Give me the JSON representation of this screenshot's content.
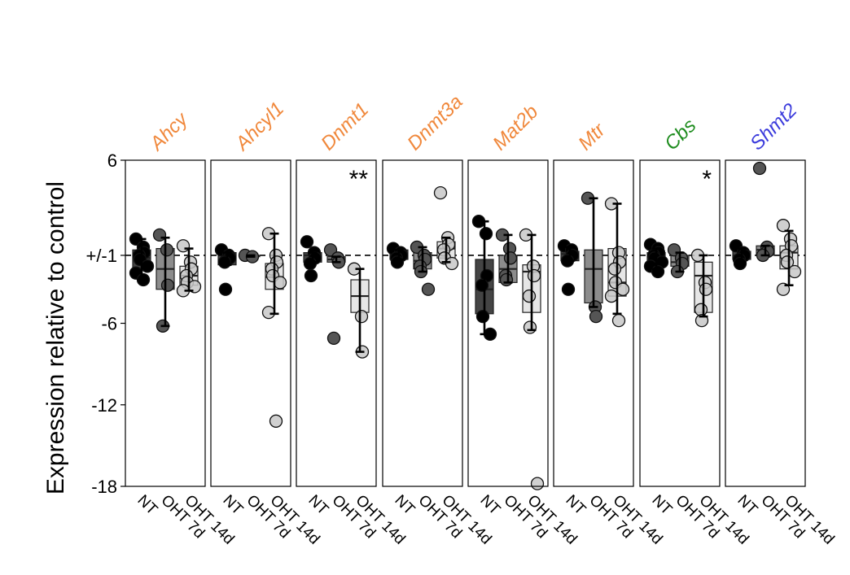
{
  "chart_data": {
    "type": "box",
    "ylabel": "Expression relative to control",
    "ylim": [
      -18,
      6
    ],
    "y_ticks": [
      6,
      -1,
      -6,
      -12,
      -18
    ],
    "y_tick_labels": [
      "6",
      "+/-1",
      "-6",
      "-12",
      "-18"
    ],
    "baseline": -1,
    "categories": [
      "NT",
      "OHT 7d",
      "OHT 14d"
    ],
    "group_colors": [
      "#000000",
      "#555555",
      "#c8c8c8"
    ],
    "box_colors": [
      "#444444",
      "#8c8c8c",
      "#e6e6e6"
    ],
    "panels": [
      {
        "gene": "Ahcy",
        "color": "#f0883c",
        "significance": "",
        "groups": [
          {
            "name": "NT",
            "points": [
              0.2,
              -0.4,
              -0.8,
              -1.0,
              -1.3,
              -1.8,
              -2.3,
              -2.8
            ],
            "q1": -2.0,
            "median": -1.2,
            "q3": -0.6,
            "whisker_low": -2.8,
            "whisker_high": 0.2
          },
          {
            "name": "OHT 7d",
            "points": [
              0.5,
              -0.6,
              -3.2,
              -6.2
            ],
            "q1": -3.5,
            "median": -2.0,
            "q3": -0.5,
            "whisker_low": -6.2,
            "whisker_high": 0.3
          },
          {
            "name": "OHT 14d",
            "points": [
              -0.3,
              -1.5,
              -2.0,
              -2.5,
              -3.0,
              -3.3,
              -3.6
            ],
            "q1": -3.2,
            "median": -2.5,
            "q3": -1.8,
            "whisker_low": -3.6,
            "whisker_high": -0.5
          }
        ]
      },
      {
        "gene": "Ahcyl1",
        "color": "#f0883c",
        "significance": "",
        "groups": [
          {
            "name": "NT",
            "points": [
              -0.6,
              -1.0,
              -1.2,
              -1.5,
              -3.5
            ],
            "q1": -1.7,
            "median": -1.0,
            "q3": -0.8,
            "whisker_low": -1.7,
            "whisker_high": -0.8
          },
          {
            "name": "OHT 7d",
            "points": [
              -1.0,
              -1.1
            ],
            "q1": -1.1,
            "median": -1.05,
            "q3": -1.0,
            "whisker_low": -1.1,
            "whisker_high": -1.0
          },
          {
            "name": "OHT 14d",
            "points": [
              0.6,
              -1.0,
              -1.5,
              -2.0,
              -2.5,
              -3.0,
              -5.2,
              -13.2
            ],
            "q1": -3.5,
            "median": -2.6,
            "q3": -1.6,
            "whisker_low": -5.3,
            "whisker_high": 0.6
          }
        ]
      },
      {
        "gene": "Dnmt1",
        "color": "#f0883c",
        "significance": "**",
        "groups": [
          {
            "name": "NT",
            "points": [
              0.0,
              -0.8,
              -1.2,
              -1.6,
              -2.5
            ],
            "q1": -1.5,
            "median": -1.0,
            "q3": -0.8,
            "whisker_low": -1.5,
            "whisker_high": -0.8
          },
          {
            "name": "OHT 7d",
            "points": [
              -0.6,
              -1.2,
              -1.5,
              -7.1
            ],
            "q1": -1.5,
            "median": -1.3,
            "q3": -1.1,
            "whisker_low": -1.5,
            "whisker_high": -1.1
          },
          {
            "name": "OHT 14d",
            "points": [
              -2.0,
              -5.5,
              -8.1
            ],
            "q1": -5.2,
            "median": -4.0,
            "q3": -2.8,
            "whisker_low": -8.1,
            "whisker_high": -2.0
          }
        ]
      },
      {
        "gene": "Dnmt3a",
        "color": "#f0883c",
        "significance": "",
        "groups": [
          {
            "name": "NT",
            "points": [
              -0.5,
              -0.8,
              -1.0,
              -1.2,
              -1.5
            ],
            "q1": -1.3,
            "median": -1.0,
            "q3": -0.6,
            "whisker_low": -1.3,
            "whisker_high": -0.6
          },
          {
            "name": "OHT 7d",
            "points": [
              -0.4,
              -1.0,
              -1.3,
              -1.8,
              -2.2,
              -3.5
            ],
            "q1": -2.0,
            "median": -1.4,
            "q3": -0.8,
            "whisker_low": -2.2,
            "whisker_high": -0.4
          },
          {
            "name": "OHT 14d",
            "points": [
              3.6,
              0.3,
              -0.2,
              -0.6,
              -1.2,
              -1.6
            ],
            "q1": -1.2,
            "median": -0.5,
            "q3": 0.0,
            "whisker_low": -1.5,
            "whisker_high": 0.3
          }
        ]
      },
      {
        "gene": "Mat2b",
        "color": "#f0883c",
        "significance": "",
        "groups": [
          {
            "name": "NT",
            "points": [
              1.5,
              0.6,
              -2.5,
              -3.2,
              -5.5,
              -6.8
            ],
            "q1": -5.3,
            "median": -3.5,
            "q3": -1.3,
            "whisker_low": -6.8,
            "whisker_high": 1.5
          },
          {
            "name": "OHT 7d",
            "points": [
              0.5,
              -0.5,
              -1.2,
              -2.5,
              -2.8
            ],
            "q1": -3.0,
            "median": -2.0,
            "q3": -1.0,
            "whisker_low": -3.0,
            "whisker_high": 0.5
          },
          {
            "name": "OHT 14d",
            "points": [
              0.5,
              -1.8,
              -2.5,
              -4.0,
              -6.3,
              -17.8
            ],
            "q1": -5.2,
            "median": -2.2,
            "q3": -1.7,
            "whisker_low": -6.5,
            "whisker_high": 0.5
          }
        ]
      },
      {
        "gene": "Mtr",
        "color": "#f0883c",
        "significance": "",
        "groups": [
          {
            "name": "NT",
            "points": [
              -0.3,
              -0.6,
              -1.0,
              -1.4,
              -3.5
            ],
            "q1": -1.4,
            "median": -0.9,
            "q3": -0.7,
            "whisker_low": -1.4,
            "whisker_high": -0.4
          },
          {
            "name": "OHT 7d",
            "points": [
              3.2,
              -4.8,
              -5.5
            ],
            "q1": -4.5,
            "median": -2.0,
            "q3": -0.6,
            "whisker_low": -4.8,
            "whisker_high": 3.2
          },
          {
            "name": "OHT 14d",
            "points": [
              2.8,
              -0.8,
              -1.5,
              -2.0,
              -3.0,
              -3.5,
              -4.0,
              -5.8
            ],
            "q1": -4.0,
            "median": -3.0,
            "q3": -0.5,
            "whisker_low": -5.3,
            "whisker_high": 2.8
          }
        ]
      },
      {
        "gene": "Cbs",
        "color": "#1e8c1e",
        "significance": "*",
        "groups": [
          {
            "name": "NT",
            "points": [
              -0.2,
              -0.5,
              -0.8,
              -1.0,
              -1.2,
              -1.5,
              -1.8,
              -2.2
            ],
            "q1": -1.6,
            "median": -1.3,
            "q3": -0.8,
            "whisker_low": -2.0,
            "whisker_high": -0.5
          },
          {
            "name": "OHT 7d",
            "points": [
              -0.6,
              -1.2,
              -1.6,
              -2.2
            ],
            "q1": -1.8,
            "median": -1.5,
            "q3": -1.0,
            "whisker_low": -2.2,
            "whisker_high": -0.8
          },
          {
            "name": "OHT 14d",
            "points": [
              -1.0,
              -3.0,
              -3.5,
              -5.0,
              -5.8
            ],
            "q1": -5.2,
            "median": -2.5,
            "q3": -1.5,
            "whisker_low": -5.5,
            "whisker_high": -1.0
          }
        ]
      },
      {
        "gene": "Shmt2",
        "color": "#3c3cdc",
        "significance": "",
        "groups": [
          {
            "name": "NT",
            "points": [
              -0.3,
              -0.8,
              -1.0,
              -1.3,
              -1.6
            ],
            "q1": -1.3,
            "median": -1.0,
            "q3": -0.7,
            "whisker_low": -1.5,
            "whisker_high": -0.5
          },
          {
            "name": "OHT 7d",
            "points": [
              5.4,
              -0.4,
              -0.7,
              -1.0
            ],
            "q1": -1.0,
            "median": -0.6,
            "q3": -0.3,
            "whisker_low": -1.0,
            "whisker_high": -0.3
          },
          {
            "name": "OHT 14d",
            "points": [
              1.2,
              0.2,
              -0.3,
              -1.0,
              -1.5,
              -2.2,
              -3.5
            ],
            "q1": -2.0,
            "median": -0.8,
            "q3": -0.3,
            "whisker_low": -3.2,
            "whisker_high": 0.8
          }
        ]
      }
    ]
  }
}
